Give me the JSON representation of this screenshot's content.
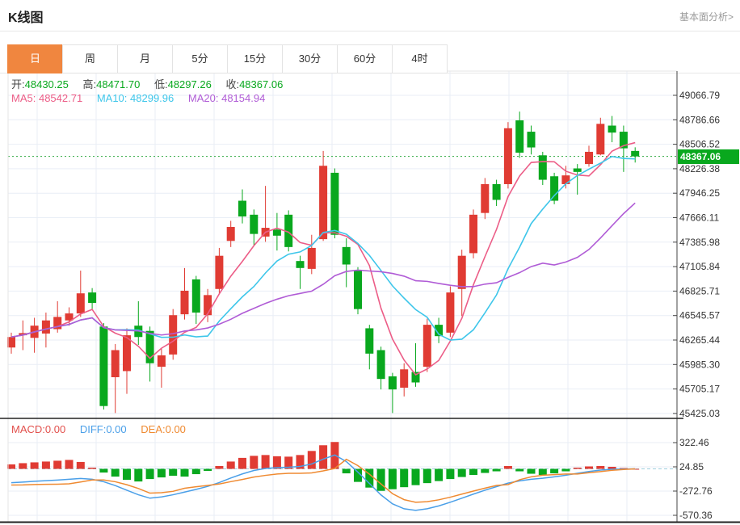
{
  "header": {
    "title": "K线图",
    "link": "基本面分析>"
  },
  "tabs": {
    "items": [
      "日",
      "周",
      "月",
      "5分",
      "15分",
      "30分",
      "60分",
      "4时"
    ],
    "active_index": 0
  },
  "legend": {
    "ohlc": [
      {
        "label": "开:",
        "value": "48430.25"
      },
      {
        "label": "高:",
        "value": "48471.70"
      },
      {
        "label": "低:",
        "value": "48297.26"
      },
      {
        "label": "收:",
        "value": "48367.06"
      }
    ],
    "ma": [
      {
        "label": "MA5:",
        "value": "48542.71"
      },
      {
        "label": "MA10:",
        "value": "48299.96"
      },
      {
        "label": "MA20:",
        "value": "48154.94"
      }
    ],
    "macd": [
      {
        "label": "MACD:",
        "value": "0.00"
      },
      {
        "label": "DIFF:",
        "value": "0.00"
      },
      {
        "label": "DEA:",
        "value": "0.00"
      }
    ]
  },
  "price_tag": {
    "value": "48367.06"
  },
  "colors": {
    "up": "#e03b33",
    "down": "#09a81e",
    "ma5": "#ec5d87",
    "ma10": "#3ec6ea",
    "ma20": "#b05cd6",
    "diff": "#4a9fe8",
    "dea": "#ef8a31",
    "price_line": "#2aa83c",
    "price_tag_bg": "#09a81e",
    "active_tab": "#f0863f",
    "grid": "#e9eef6",
    "macd_zero": "#9fcfdd"
  },
  "chart_data": [
    {
      "type": "candlestick",
      "title": "K线图",
      "period": "日",
      "y_axis_side": "right",
      "grid": true,
      "ohlc_order": [
        "open",
        "close",
        "high",
        "low"
      ],
      "price_axis_ticks": [
        49066.79,
        48786.66,
        48506.52,
        48226.38,
        47946.25,
        47666.11,
        47385.98,
        47105.84,
        46825.71,
        46545.57,
        46265.44,
        45985.3,
        45705.17,
        45425.03
      ],
      "current_price": 48367.06,
      "latest": {
        "open": 48430.25,
        "high": 48471.7,
        "low": 48297.26,
        "close": 48367.06
      },
      "ma_values": {
        "MA5": 48542.71,
        "MA10": 48299.96,
        "MA20": 48154.94
      },
      "candles": [
        [
          46180,
          46300,
          46350,
          46110
        ],
        [
          46320,
          46345,
          46490,
          46150
        ],
        [
          46290,
          46430,
          46520,
          46120
        ],
        [
          46340,
          46490,
          46580,
          46180
        ],
        [
          46390,
          46530,
          46710,
          46350
        ],
        [
          46490,
          46570,
          46640,
          46430
        ],
        [
          46570,
          46800,
          47060,
          46530
        ],
        [
          46810,
          46690,
          46860,
          46620
        ],
        [
          46420,
          45510,
          46460,
          45470
        ],
        [
          45840,
          46150,
          46220,
          45430
        ],
        [
          45910,
          46320,
          46400,
          45650
        ],
        [
          46430,
          46300,
          46710,
          46210
        ],
        [
          46370,
          46000,
          46420,
          45790
        ],
        [
          45960,
          46090,
          46170,
          45720
        ],
        [
          46100,
          46550,
          46620,
          46040
        ],
        [
          46560,
          46830,
          47090,
          46500
        ],
        [
          46960,
          46580,
          47000,
          46450
        ],
        [
          46550,
          46780,
          46850,
          46470
        ],
        [
          46850,
          47230,
          47320,
          46800
        ],
        [
          47400,
          47560,
          47630,
          47330
        ],
        [
          47860,
          47680,
          47990,
          47600
        ],
        [
          47700,
          47480,
          47760,
          47350
        ],
        [
          47450,
          47550,
          48030,
          47390
        ],
        [
          47530,
          47460,
          47720,
          47290
        ],
        [
          47700,
          47330,
          47750,
          47280
        ],
        [
          47170,
          47090,
          47230,
          46850
        ],
        [
          47080,
          47320,
          47470,
          47020
        ],
        [
          47420,
          48260,
          48430,
          47400
        ],
        [
          48180,
          47470,
          48230,
          47430
        ],
        [
          47330,
          47130,
          47430,
          46870
        ],
        [
          47060,
          46620,
          47100,
          46560
        ],
        [
          46400,
          46110,
          46440,
          45930
        ],
        [
          46150,
          45820,
          46190,
          45700
        ],
        [
          45850,
          45700,
          45890,
          45430
        ],
        [
          45720,
          45930,
          46000,
          45620
        ],
        [
          45900,
          45780,
          46230,
          45730
        ],
        [
          45960,
          46440,
          46510,
          45900
        ],
        [
          46440,
          46310,
          46520,
          46230
        ],
        [
          46350,
          46810,
          46880,
          46300
        ],
        [
          46850,
          47230,
          47300,
          46540
        ],
        [
          47260,
          47700,
          47760,
          47200
        ],
        [
          47720,
          48050,
          48120,
          47650
        ],
        [
          48050,
          47870,
          48100,
          47800
        ],
        [
          48050,
          48690,
          48760,
          48000
        ],
        [
          48780,
          48410,
          48880,
          48350
        ],
        [
          48650,
          48470,
          48720,
          48390
        ],
        [
          48380,
          48100,
          48420,
          48040
        ],
        [
          48140,
          47860,
          48180,
          47820
        ],
        [
          48050,
          48150,
          48260,
          48000
        ],
        [
          48230,
          48190,
          48280,
          47930
        ],
        [
          48280,
          48420,
          48490,
          48250
        ],
        [
          48390,
          48740,
          48810,
          48380
        ],
        [
          48720,
          48640,
          48830,
          48530
        ],
        [
          48650,
          48460,
          48720,
          48190
        ],
        [
          48430.25,
          48367.06,
          48471.7,
          48297.26
        ]
      ]
    },
    {
      "type": "bar",
      "title": "MACD",
      "axis_ticks": [
        322.46,
        24.85,
        -272.76,
        -570.36
      ],
      "values_shown": {
        "MACD": 0.0,
        "DIFF": 0.0,
        "DEA": 0.0
      },
      "histogram": [
        55,
        70,
        80,
        90,
        100,
        110,
        85,
        15,
        -45,
        -95,
        -135,
        -155,
        -125,
        -105,
        -85,
        -95,
        -65,
        -25,
        35,
        90,
        135,
        160,
        170,
        155,
        150,
        170,
        220,
        290,
        330,
        -55,
        -160,
        -230,
        -270,
        -250,
        -225,
        -200,
        -175,
        -150,
        -125,
        -100,
        -75,
        -50,
        -30,
        35,
        -30,
        -60,
        -75,
        -55,
        -30,
        15,
        30,
        35,
        25,
        10,
        0
      ],
      "diff": [
        -170,
        -162,
        -152,
        -145,
        -138,
        -128,
        -118,
        -128,
        -158,
        -205,
        -262,
        -318,
        -360,
        -345,
        -318,
        -285,
        -252,
        -215,
        -168,
        -112,
        -62,
        -20,
        5,
        15,
        20,
        30,
        60,
        120,
        170,
        90,
        -40,
        -180,
        -320,
        -430,
        -490,
        -510,
        -490,
        -455,
        -410,
        -360,
        -310,
        -262,
        -218,
        -175,
        -148,
        -128,
        -115,
        -98,
        -78,
        -55,
        -32,
        -15,
        -5,
        -2,
        0
      ],
      "dea": [
        -198,
        -197,
        -192,
        -190,
        -188,
        -183,
        -161,
        -136,
        -136,
        -158,
        -195,
        -241,
        -298,
        -293,
        -276,
        -238,
        -220,
        -203,
        -186,
        -157,
        -130,
        -100,
        -80,
        -63,
        -55,
        -55,
        -50,
        -25,
        5,
        118,
        40,
        -65,
        -185,
        -305,
        -378,
        -410,
        -403,
        -380,
        -348,
        -310,
        -273,
        -237,
        -203,
        -193,
        -133,
        -98,
        -78,
        -71,
        -63,
        -63,
        -47,
        -33,
        -18,
        -7,
        0
      ]
    }
  ]
}
